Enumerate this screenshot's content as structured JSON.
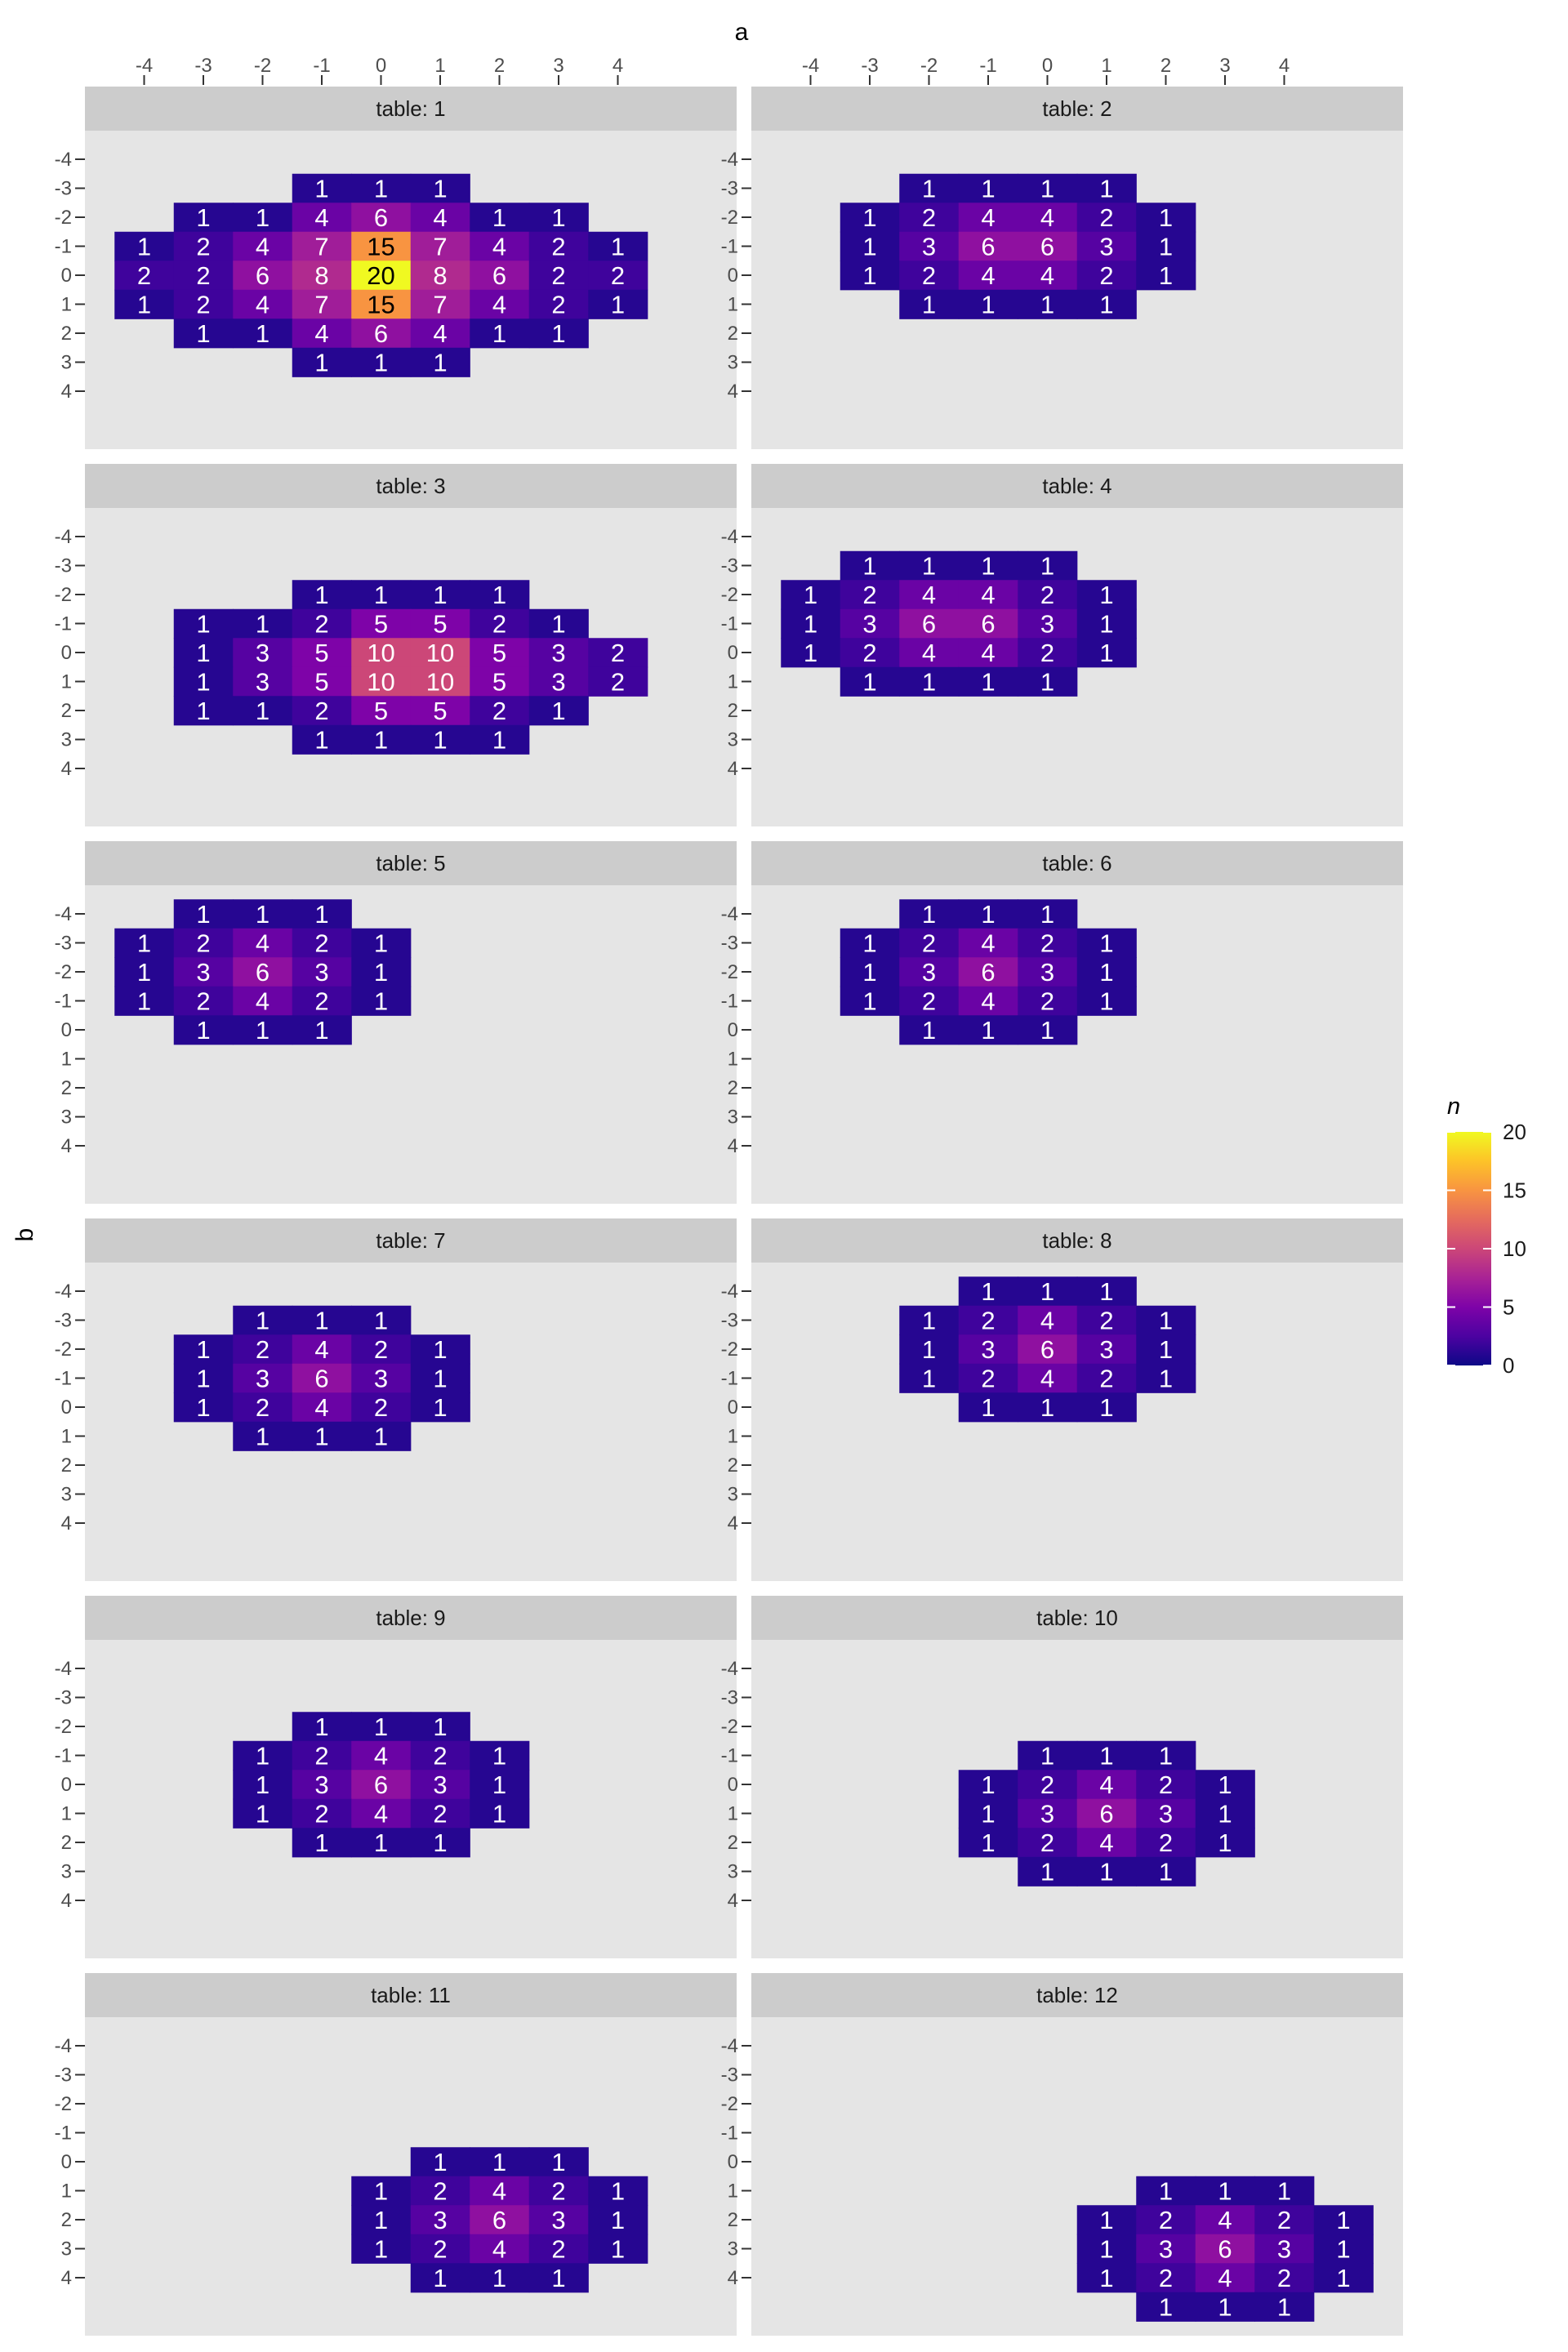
{
  "chart_data": {
    "type": "heatmap",
    "xlabel": "a",
    "ylabel": "b",
    "facet_label_prefix": "table: ",
    "x_ticks": [
      -4,
      -3,
      -2,
      -1,
      0,
      1,
      2,
      3,
      4
    ],
    "y_ticks": [
      -4,
      -3,
      -2,
      -1,
      0,
      1,
      2,
      3,
      4
    ],
    "x_tick_labels": [
      "-4",
      "-3",
      "-2",
      "-1",
      "0",
      "1",
      "2",
      "3",
      "4"
    ],
    "y_tick_labels": [
      "-4",
      "-3",
      "-2",
      "-1",
      "0",
      "1",
      "2",
      "3",
      "4"
    ],
    "x_axis_position": "top",
    "y_axis_reversed": true,
    "legend": {
      "title": "n",
      "position": "right",
      "colormap": "plasma",
      "min": 0,
      "max": 20,
      "ticks": [
        0,
        5,
        10,
        15,
        20
      ],
      "tick_labels": [
        "0",
        "5",
        "10",
        "15",
        "20"
      ]
    },
    "colors": {
      "panel_bg": "#e5e5e5",
      "strip_bg": "#cccccc",
      "label_light": "#ffffff",
      "label_dark": "#000000"
    },
    "panels": [
      {
        "table": "1",
        "label": "table: 1",
        "rows": [
          {
            "b": -3,
            "x0": -1,
            "counts": [
              1,
              1,
              1
            ]
          },
          {
            "b": -2,
            "x0": -3,
            "counts": [
              1,
              1,
              4,
              6,
              4,
              1,
              1
            ]
          },
          {
            "b": -1,
            "x0": -4,
            "counts": [
              1,
              2,
              4,
              7,
              15,
              7,
              4,
              2,
              1
            ]
          },
          {
            "b": 0,
            "x0": -4,
            "counts": [
              2,
              2,
              6,
              8,
              20,
              8,
              6,
              2,
              2
            ]
          },
          {
            "b": 1,
            "x0": -4,
            "counts": [
              1,
              2,
              4,
              7,
              15,
              7,
              4,
              2,
              1
            ]
          },
          {
            "b": 2,
            "x0": -3,
            "counts": [
              1,
              1,
              4,
              6,
              4,
              1,
              1
            ]
          },
          {
            "b": 3,
            "x0": -1,
            "counts": [
              1,
              1,
              1
            ]
          }
        ]
      },
      {
        "table": "2",
        "label": "table: 2",
        "rows": [
          {
            "b": -3,
            "x0": -2,
            "counts": [
              1,
              1,
              1,
              1
            ]
          },
          {
            "b": -2,
            "x0": -3,
            "counts": [
              1,
              2,
              4,
              4,
              2,
              1
            ]
          },
          {
            "b": -1,
            "x0": -3,
            "counts": [
              1,
              3,
              6,
              6,
              3,
              1
            ]
          },
          {
            "b": 0,
            "x0": -3,
            "counts": [
              1,
              2,
              4,
              4,
              2,
              1
            ]
          },
          {
            "b": 1,
            "x0": -2,
            "counts": [
              1,
              1,
              1,
              1
            ]
          }
        ]
      },
      {
        "table": "3",
        "label": "table: 3",
        "rows": [
          {
            "b": -2,
            "x0": -1,
            "counts": [
              1,
              1,
              1,
              1
            ]
          },
          {
            "b": -1,
            "x0": -3,
            "counts": [
              1,
              1,
              2,
              5,
              5,
              2,
              1
            ]
          },
          {
            "b": 0,
            "x0": -3,
            "counts": [
              1,
              3,
              5,
              10,
              10,
              5,
              3,
              2
            ]
          },
          {
            "b": 1,
            "x0": -3,
            "counts": [
              1,
              3,
              5,
              10,
              10,
              5,
              3,
              2
            ]
          },
          {
            "b": 2,
            "x0": -3,
            "counts": [
              1,
              1,
              2,
              5,
              5,
              2,
              1
            ]
          },
          {
            "b": 3,
            "x0": -1,
            "counts": [
              1,
              1,
              1,
              1
            ]
          }
        ]
      },
      {
        "table": "4",
        "label": "table: 4",
        "rows": [
          {
            "b": -3,
            "x0": -3,
            "counts": [
              1,
              1,
              1,
              1
            ]
          },
          {
            "b": -2,
            "x0": -4,
            "counts": [
              1,
              2,
              4,
              4,
              2,
              1
            ]
          },
          {
            "b": -1,
            "x0": -4,
            "counts": [
              1,
              3,
              6,
              6,
              3,
              1
            ]
          },
          {
            "b": 0,
            "x0": -4,
            "counts": [
              1,
              2,
              4,
              4,
              2,
              1
            ]
          },
          {
            "b": 1,
            "x0": -3,
            "counts": [
              1,
              1,
              1,
              1
            ]
          }
        ]
      },
      {
        "table": "5",
        "label": "table: 5",
        "rows": [
          {
            "b": -4,
            "x0": -3,
            "counts": [
              1,
              1,
              1
            ]
          },
          {
            "b": -3,
            "x0": -4,
            "counts": [
              1,
              2,
              4,
              2,
              1
            ]
          },
          {
            "b": -2,
            "x0": -4,
            "counts": [
              1,
              3,
              6,
              3,
              1
            ]
          },
          {
            "b": -1,
            "x0": -4,
            "counts": [
              1,
              2,
              4,
              2,
              1
            ]
          },
          {
            "b": 0,
            "x0": -3,
            "counts": [
              1,
              1,
              1
            ]
          }
        ]
      },
      {
        "table": "6",
        "label": "table: 6",
        "rows": [
          {
            "b": -4,
            "x0": -2,
            "counts": [
              1,
              1,
              1
            ]
          },
          {
            "b": -3,
            "x0": -3,
            "counts": [
              1,
              2,
              4,
              2,
              1
            ]
          },
          {
            "b": -2,
            "x0": -3,
            "counts": [
              1,
              3,
              6,
              3,
              1
            ]
          },
          {
            "b": -1,
            "x0": -3,
            "counts": [
              1,
              2,
              4,
              2,
              1
            ]
          },
          {
            "b": 0,
            "x0": -2,
            "counts": [
              1,
              1,
              1
            ]
          }
        ]
      },
      {
        "table": "7",
        "label": "table: 7",
        "rows": [
          {
            "b": -3,
            "x0": -2,
            "counts": [
              1,
              1,
              1
            ]
          },
          {
            "b": -2,
            "x0": -3,
            "counts": [
              1,
              2,
              4,
              2,
              1
            ]
          },
          {
            "b": -1,
            "x0": -3,
            "counts": [
              1,
              3,
              6,
              3,
              1
            ]
          },
          {
            "b": 0,
            "x0": -3,
            "counts": [
              1,
              2,
              4,
              2,
              1
            ]
          },
          {
            "b": 1,
            "x0": -2,
            "counts": [
              1,
              1,
              1
            ]
          }
        ]
      },
      {
        "table": "8",
        "label": "table: 8",
        "rows": [
          {
            "b": -4,
            "x0": -1,
            "counts": [
              1,
              1,
              1
            ]
          },
          {
            "b": -3,
            "x0": -2,
            "counts": [
              1,
              2,
              4,
              2,
              1
            ]
          },
          {
            "b": -2,
            "x0": -2,
            "counts": [
              1,
              3,
              6,
              3,
              1
            ]
          },
          {
            "b": -1,
            "x0": -2,
            "counts": [
              1,
              2,
              4,
              2,
              1
            ]
          },
          {
            "b": 0,
            "x0": -1,
            "counts": [
              1,
              1,
              1
            ]
          }
        ]
      },
      {
        "table": "9",
        "label": "table: 9",
        "rows": [
          {
            "b": -2,
            "x0": -1,
            "counts": [
              1,
              1,
              1
            ]
          },
          {
            "b": -1,
            "x0": -2,
            "counts": [
              1,
              2,
              4,
              2,
              1
            ]
          },
          {
            "b": 0,
            "x0": -2,
            "counts": [
              1,
              3,
              6,
              3,
              1
            ]
          },
          {
            "b": 1,
            "x0": -2,
            "counts": [
              1,
              2,
              4,
              2,
              1
            ]
          },
          {
            "b": 2,
            "x0": -1,
            "counts": [
              1,
              1,
              1
            ]
          }
        ]
      },
      {
        "table": "10",
        "label": "table: 10",
        "rows": [
          {
            "b": -1,
            "x0": 0,
            "counts": [
              1,
              1,
              1
            ]
          },
          {
            "b": 0,
            "x0": -1,
            "counts": [
              1,
              2,
              4,
              2,
              1
            ]
          },
          {
            "b": 1,
            "x0": -1,
            "counts": [
              1,
              3,
              6,
              3,
              1
            ]
          },
          {
            "b": 2,
            "x0": -1,
            "counts": [
              1,
              2,
              4,
              2,
              1
            ]
          },
          {
            "b": 3,
            "x0": 0,
            "counts": [
              1,
              1,
              1
            ]
          }
        ]
      },
      {
        "table": "11",
        "label": "table: 11",
        "rows": [
          {
            "b": 0,
            "x0": 1,
            "counts": [
              1,
              1,
              1
            ]
          },
          {
            "b": 1,
            "x0": 0,
            "counts": [
              1,
              2,
              4,
              2,
              1
            ]
          },
          {
            "b": 2,
            "x0": 0,
            "counts": [
              1,
              3,
              6,
              3,
              1
            ]
          },
          {
            "b": 3,
            "x0": 0,
            "counts": [
              1,
              2,
              4,
              2,
              1
            ]
          },
          {
            "b": 4,
            "x0": 1,
            "counts": [
              1,
              1,
              1
            ]
          }
        ]
      },
      {
        "table": "12",
        "label": "table: 12",
        "rows": [
          {
            "b": 1,
            "x0": 2,
            "counts": [
              1,
              1,
              1
            ]
          },
          {
            "b": 2,
            "x0": 1,
            "counts": [
              1,
              2,
              4,
              2,
              1
            ]
          },
          {
            "b": 3,
            "x0": 1,
            "counts": [
              1,
              3,
              6,
              3,
              1
            ]
          },
          {
            "b": 4,
            "x0": 1,
            "counts": [
              1,
              2,
              4,
              2,
              1
            ]
          },
          {
            "b": 5,
            "x0": 2,
            "counts": [
              1,
              1,
              1
            ]
          }
        ]
      }
    ]
  }
}
